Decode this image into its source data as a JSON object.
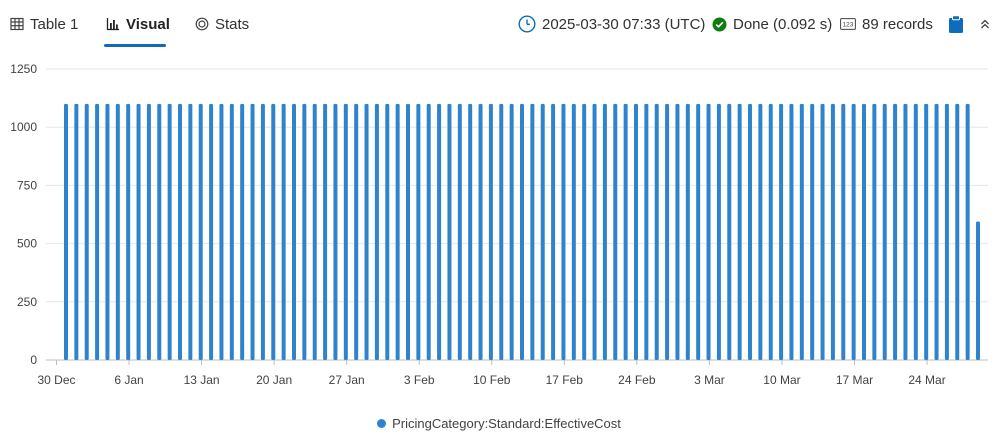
{
  "tabs": [
    {
      "label": "Table 1",
      "icon": "table-icon"
    },
    {
      "label": "Visual",
      "icon": "bar-chart-icon",
      "active": true
    },
    {
      "label": "Stats",
      "icon": "stats-icon"
    }
  ],
  "status": {
    "timestamp": "2025-03-30 07:33 (UTC)",
    "done": "Done (0.092 s)",
    "records": "89 records"
  },
  "colors": {
    "accent": "#0f6cbd",
    "series": "#2f83cc",
    "done_green": "#107c10",
    "grid": "#e6e6e6"
  },
  "chart_data": {
    "type": "bar",
    "series": [
      {
        "name": "PricingCategory:Standard:EffectiveCost",
        "count": 89,
        "value": 1100,
        "last_value": 595
      }
    ],
    "x_start": "2024-12-30",
    "x_ticks": [
      "30 Dec",
      "6 Jan",
      "13 Jan",
      "20 Jan",
      "27 Jan",
      "3 Feb",
      "10 Feb",
      "17 Feb",
      "24 Feb",
      "3 Mar",
      "10 Mar",
      "17 Mar",
      "24 Mar"
    ],
    "y_ticks": [
      "0",
      "250",
      "500",
      "750",
      "1000",
      "1250"
    ],
    "ylim": [
      0,
      1250
    ],
    "grid": true,
    "legend": "bottom"
  }
}
